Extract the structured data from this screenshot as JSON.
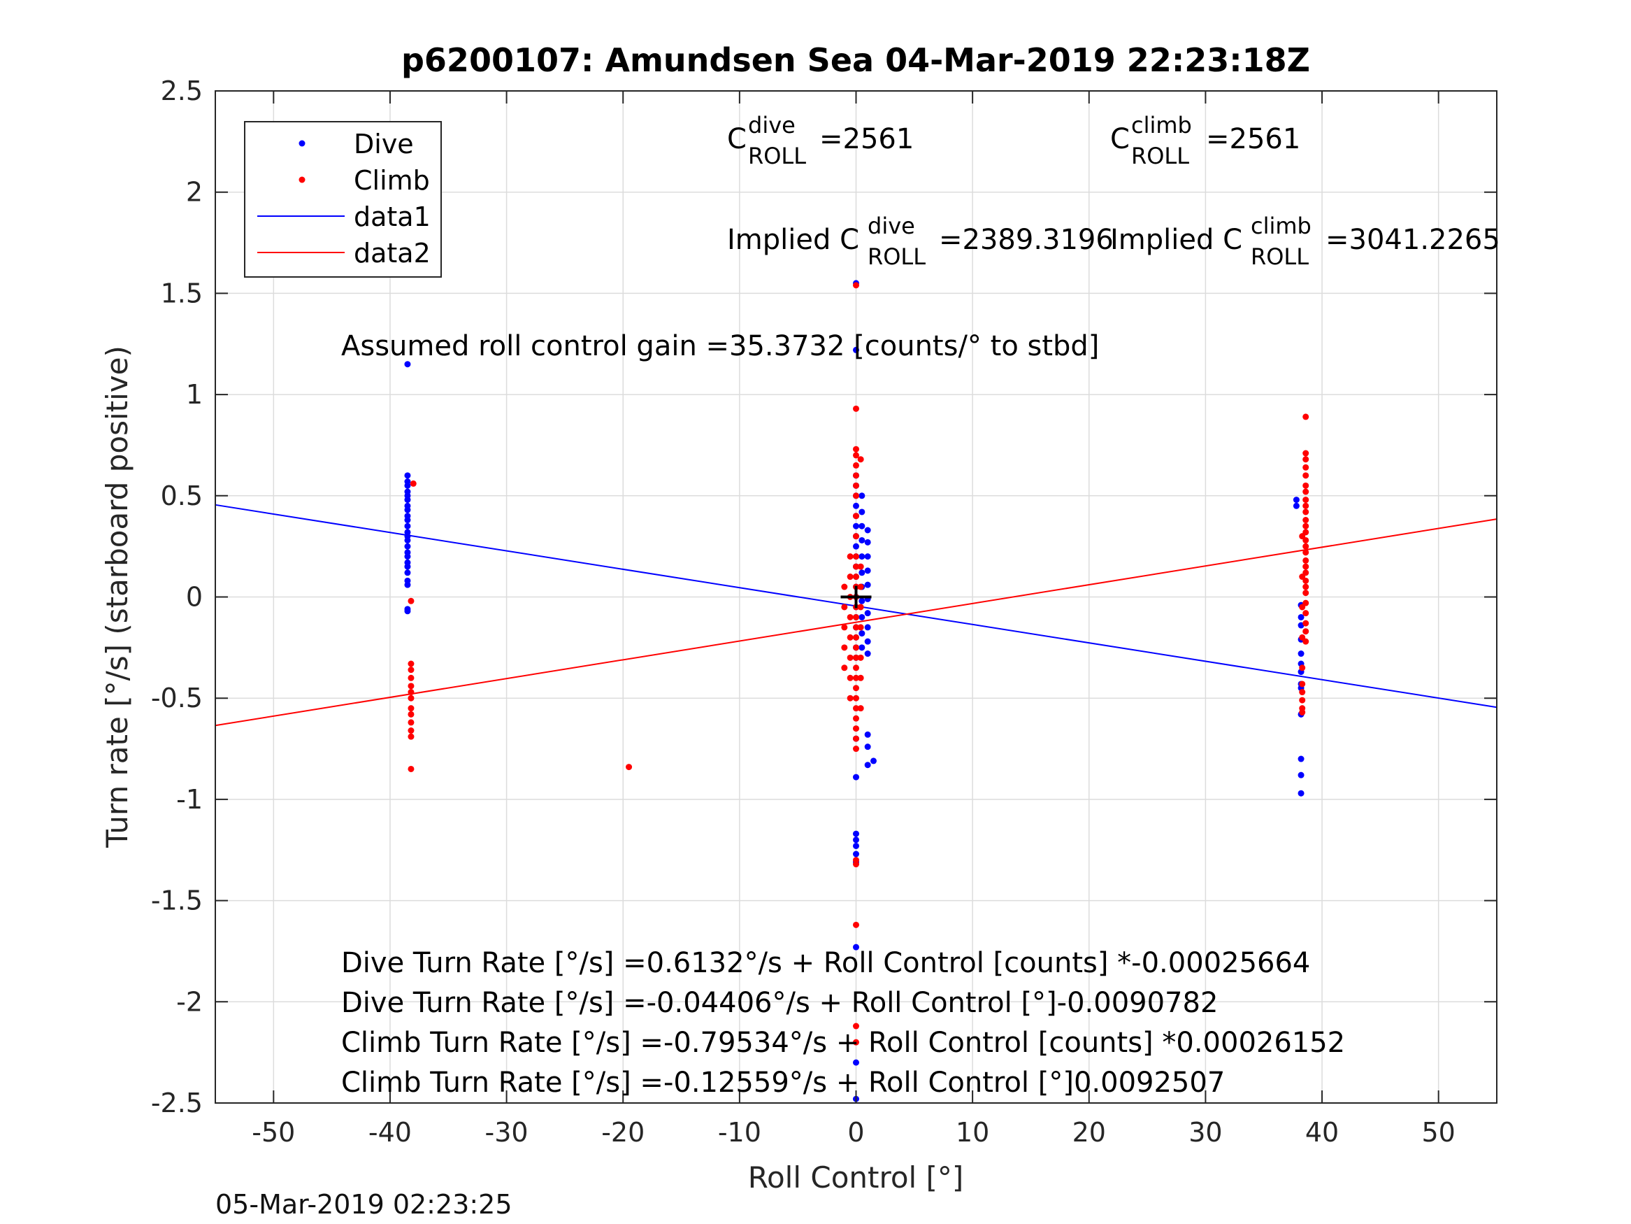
{
  "chart_data": {
    "type": "scatter",
    "title": "p6200107: Amundsen Sea 04-Mar-2019 22:23:18Z",
    "xlabel": "Roll Control [°]",
    "ylabel": "Turn rate [°/s] (starboard positive)",
    "xlim": [
      -55,
      55
    ],
    "ylim": [
      -2.5,
      2.5
    ],
    "xticks": [
      -50,
      -40,
      -30,
      -20,
      -10,
      0,
      10,
      20,
      30,
      40,
      50
    ],
    "xtick_labels": [
      "-50",
      "-40",
      "-30",
      "-20",
      "-10",
      "0",
      "10",
      "20",
      "30",
      "40",
      "50"
    ],
    "yticks": [
      2.5,
      2,
      1.5,
      1,
      0.5,
      0,
      -0.5,
      -1,
      -1.5,
      -2,
      -2.5
    ],
    "ytick_labels": [
      "2.5",
      "2",
      "1.5",
      "1",
      "0.5",
      "0",
      "-0.5",
      "-1",
      "-1.5",
      "-2",
      "-2.5"
    ],
    "grid": true,
    "legend_position": "top-left",
    "colors": {
      "dive": "#0000ff",
      "climb": "#ff0000",
      "center_marker": "#000000"
    },
    "series": [
      {
        "name": "Dive",
        "kind": "points",
        "color": "#0000ff",
        "points": [
          [
            -38.5,
            1.15
          ],
          [
            -38.5,
            0.6
          ],
          [
            -38.5,
            0.57
          ],
          [
            -38.5,
            0.55
          ],
          [
            -38.5,
            0.52
          ],
          [
            -38.5,
            0.5
          ],
          [
            -38.5,
            0.48
          ],
          [
            -38.5,
            0.45
          ],
          [
            -38.5,
            0.43
          ],
          [
            -38.5,
            0.4
          ],
          [
            -38.5,
            0.38
          ],
          [
            -38.5,
            0.35
          ],
          [
            -38.5,
            0.32
          ],
          [
            -38.5,
            0.3
          ],
          [
            -38.5,
            0.28
          ],
          [
            -38.5,
            0.25
          ],
          [
            -38.5,
            0.22
          ],
          [
            -38.5,
            0.2
          ],
          [
            -38.5,
            0.17
          ],
          [
            -38.5,
            0.15
          ],
          [
            -38.5,
            0.12
          ],
          [
            -38.5,
            0.08
          ],
          [
            -38.5,
            0.06
          ],
          [
            -38.5,
            -0.06
          ],
          [
            -38.5,
            -0.07
          ],
          [
            0,
            1.55
          ],
          [
            0,
            1.22
          ],
          [
            0,
            0.6
          ],
          [
            0,
            0.55
          ],
          [
            0,
            0.5
          ],
          [
            0,
            0.45
          ],
          [
            0,
            0.4
          ],
          [
            0,
            0.35
          ],
          [
            0,
            0.3
          ],
          [
            0,
            0.25
          ],
          [
            0,
            0.2
          ],
          [
            0,
            0.15
          ],
          [
            0,
            0.1
          ],
          [
            0,
            0.05
          ],
          [
            0,
            0
          ],
          [
            0,
            -0.05
          ],
          [
            0,
            -0.1
          ],
          [
            0,
            -0.15
          ],
          [
            0,
            -0.2
          ],
          [
            0,
            -0.25
          ],
          [
            0,
            -0.3
          ],
          [
            0,
            -0.7
          ],
          [
            0,
            -0.89
          ],
          [
            0,
            -1.17
          ],
          [
            0,
            -1.2
          ],
          [
            0,
            -1.23
          ],
          [
            0,
            -1.27
          ],
          [
            0,
            -1.31
          ],
          [
            0,
            -1.73
          ],
          [
            0,
            -2.3
          ],
          [
            0,
            -2.48
          ],
          [
            0.5,
            0.5
          ],
          [
            0.5,
            0.42
          ],
          [
            0.5,
            0.35
          ],
          [
            0.5,
            0.28
          ],
          [
            0.5,
            0.2
          ],
          [
            0.5,
            0.12
          ],
          [
            0.5,
            0.05
          ],
          [
            0.5,
            -0.02
          ],
          [
            0.5,
            -0.1
          ],
          [
            0.5,
            -0.18
          ],
          [
            0.5,
            -0.25
          ],
          [
            1,
            0.33
          ],
          [
            1,
            0.27
          ],
          [
            1,
            0.2
          ],
          [
            1,
            0.13
          ],
          [
            1,
            0.06
          ],
          [
            1,
            -0.01
          ],
          [
            1,
            -0.08
          ],
          [
            1,
            -0.15
          ],
          [
            1,
            -0.22
          ],
          [
            1,
            -0.28
          ],
          [
            1,
            -0.68
          ],
          [
            1,
            -0.74
          ],
          [
            1,
            -0.83
          ],
          [
            1.5,
            -0.81
          ],
          [
            37.8,
            0.48
          ],
          [
            37.8,
            0.45
          ],
          [
            38.2,
            -0.04
          ],
          [
            38.2,
            -0.1
          ],
          [
            38.2,
            -0.14
          ],
          [
            38.2,
            -0.21
          ],
          [
            38.2,
            -0.28
          ],
          [
            38.2,
            -0.33
          ],
          [
            38.2,
            -0.37
          ],
          [
            38.2,
            -0.43
          ],
          [
            38.2,
            -0.45
          ],
          [
            38.2,
            -0.58
          ],
          [
            38.2,
            -0.8
          ],
          [
            38.2,
            -0.88
          ],
          [
            38.2,
            -0.97
          ]
        ]
      },
      {
        "name": "Climb",
        "kind": "points",
        "color": "#ff0000",
        "points": [
          [
            -38,
            0.56
          ],
          [
            -38.2,
            -0.02
          ],
          [
            -38.2,
            -0.33
          ],
          [
            -38.2,
            -0.36
          ],
          [
            -38.2,
            -0.4
          ],
          [
            -38.2,
            -0.44
          ],
          [
            -38.2,
            -0.47
          ],
          [
            -38.2,
            -0.5
          ],
          [
            -38.2,
            -0.55
          ],
          [
            -38.2,
            -0.58
          ],
          [
            -38.2,
            -0.62
          ],
          [
            -38.2,
            -0.66
          ],
          [
            -38.2,
            -0.69
          ],
          [
            -38.2,
            -0.85
          ],
          [
            -19.5,
            -0.84
          ],
          [
            -0.5,
            0.2
          ],
          [
            -0.5,
            0.1
          ],
          [
            -0.5,
            0
          ],
          [
            -0.5,
            -0.1
          ],
          [
            -0.5,
            -0.2
          ],
          [
            -0.5,
            -0.3
          ],
          [
            -0.5,
            -0.4
          ],
          [
            -0.5,
            -0.5
          ],
          [
            0,
            1.54
          ],
          [
            0,
            0.93
          ],
          [
            0,
            0.73
          ],
          [
            0,
            0.7
          ],
          [
            0,
            0.65
          ],
          [
            0,
            0.6
          ],
          [
            0,
            0.55
          ],
          [
            0,
            0.5
          ],
          [
            0,
            0.4
          ],
          [
            0,
            0.3
          ],
          [
            0,
            0.2
          ],
          [
            0,
            0.15
          ],
          [
            0,
            0.1
          ],
          [
            0,
            0.05
          ],
          [
            0,
            0
          ],
          [
            0,
            -0.05
          ],
          [
            0,
            -0.1
          ],
          [
            0,
            -0.15
          ],
          [
            0,
            -0.2
          ],
          [
            0,
            -0.25
          ],
          [
            0,
            -0.3
          ],
          [
            0,
            -0.35
          ],
          [
            0,
            -0.4
          ],
          [
            0,
            -0.45
          ],
          [
            0,
            -0.5
          ],
          [
            0,
            -0.55
          ],
          [
            0,
            -0.6
          ],
          [
            0,
            -0.65
          ],
          [
            0,
            -0.7
          ],
          [
            0,
            -0.75
          ],
          [
            0,
            -1.3
          ],
          [
            0,
            -1.32
          ],
          [
            0,
            -1.62
          ],
          [
            0,
            -2.12
          ],
          [
            0,
            -2.2
          ],
          [
            0.4,
            0.68
          ],
          [
            0.4,
            0.15
          ],
          [
            0.4,
            0.05
          ],
          [
            0.4,
            -0.05
          ],
          [
            0.4,
            -0.15
          ],
          [
            0.4,
            -0.3
          ],
          [
            0.4,
            -0.4
          ],
          [
            0.4,
            -0.55
          ],
          [
            -1,
            0.05
          ],
          [
            -1,
            -0.05
          ],
          [
            -1,
            -0.15
          ],
          [
            -1,
            -0.25
          ],
          [
            -1,
            -0.35
          ],
          [
            38.6,
            0.89
          ],
          [
            38.6,
            0.71
          ],
          [
            38.6,
            0.68
          ],
          [
            38.6,
            0.64
          ],
          [
            38.6,
            0.6
          ],
          [
            38.6,
            0.55
          ],
          [
            38.6,
            0.52
          ],
          [
            38.6,
            0.48
          ],
          [
            38.6,
            0.45
          ],
          [
            38.6,
            0.42
          ],
          [
            38.6,
            0.38
          ],
          [
            38.6,
            0.35
          ],
          [
            38.6,
            0.32
          ],
          [
            38.6,
            0.28
          ],
          [
            38.6,
            0.25
          ],
          [
            38.6,
            0.22
          ],
          [
            38.6,
            0.18
          ],
          [
            38.6,
            0.15
          ],
          [
            38.6,
            0.12
          ],
          [
            38.6,
            0.08
          ],
          [
            38.6,
            0.05
          ],
          [
            38.6,
            0.02
          ],
          [
            38.6,
            -0.03
          ],
          [
            38.6,
            -0.08
          ],
          [
            38.6,
            -0.13
          ],
          [
            38.6,
            -0.17
          ],
          [
            38.6,
            -0.22
          ],
          [
            38.3,
            0.3
          ],
          [
            38.3,
            0.1
          ],
          [
            38.3,
            -0.05
          ],
          [
            38.3,
            -0.2
          ],
          [
            38.3,
            -0.35
          ],
          [
            38.3,
            -0.43
          ],
          [
            38.3,
            -0.47
          ],
          [
            38.3,
            -0.51
          ],
          [
            38.3,
            -0.55
          ],
          [
            38.3,
            -0.57
          ]
        ]
      },
      {
        "name": "data1",
        "kind": "line",
        "color": "#0000ff",
        "x": [
          -55,
          55
        ],
        "y": [
          0.455,
          -0.545
        ]
      },
      {
        "name": "data2",
        "kind": "line",
        "color": "#ff0000",
        "x": [
          -55,
          55
        ],
        "y": [
          -0.635,
          0.385
        ]
      }
    ],
    "center_marker": {
      "x": 0,
      "y": 0
    },
    "annotations": {
      "c_dive_prefix": "C",
      "c_dive_sup": "dive",
      "c_dive_sub": "ROLL",
      "c_dive_value": "=2561",
      "c_climb_prefix": "C",
      "c_climb_sup": "climb",
      "c_climb_sub": "ROLL",
      "c_climb_value": "=2561",
      "implied_dive_prefix": "Implied C",
      "implied_dive_sup": "dive",
      "implied_dive_sub": "ROLL",
      "implied_dive_value": "=2389.3196",
      "implied_climb_prefix": "Implied C",
      "implied_climb_sup": "climb",
      "implied_climb_sub": "ROLL",
      "implied_climb_value": "=3041.2265",
      "gain": "Assumed roll control gain =35.3732 [counts/° to stbd]",
      "eq1": "Dive Turn Rate [°/s] =0.6132°/s + Roll Control [counts] *-0.00025664",
      "eq2": "Dive Turn Rate [°/s] =-0.04406°/s + Roll Control [°]-0.0090782",
      "eq3": "Climb Turn Rate [°/s] =-0.79534°/s + Roll Control [counts] *0.00026152",
      "eq4": "Climb Turn Rate [°/s] =-0.12559°/s + Roll Control [°]0.0092507"
    }
  },
  "footer": {
    "timestamp": "05-Mar-2019 02:23:25"
  }
}
